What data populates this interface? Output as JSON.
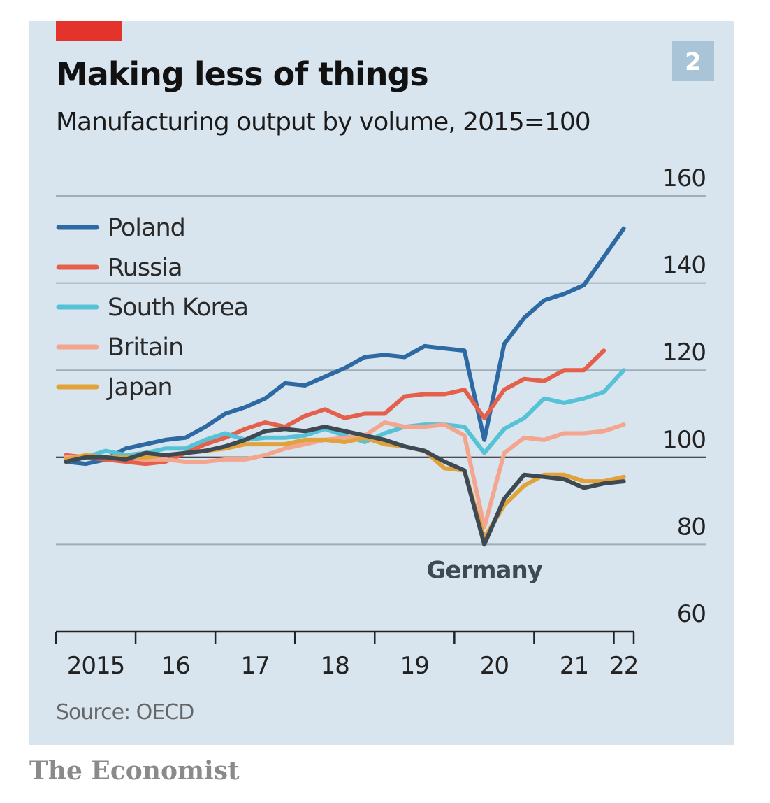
{
  "chart_data": {
    "type": "line",
    "chart_number": "2",
    "title": "Making less of things",
    "subtitle": "Manufacturing output by volume, 2015=100",
    "source": "Source: OECD",
    "publisher": "The Economist",
    "x": [
      2015.125,
      2015.375,
      2015.625,
      2015.875,
      2016.125,
      2016.375,
      2016.625,
      2016.875,
      2017.125,
      2017.375,
      2017.625,
      2017.875,
      2018.125,
      2018.375,
      2018.625,
      2018.875,
      2019.125,
      2019.375,
      2019.625,
      2019.875,
      2020.125,
      2020.375,
      2020.625,
      2020.875,
      2021.125,
      2021.375,
      2021.625,
      2021.875,
      2022.125
    ],
    "xlim": [
      2015,
      2022.25
    ],
    "xticks": [
      {
        "value": 2015,
        "label": "2015"
      },
      {
        "value": 2016,
        "label": "16"
      },
      {
        "value": 2017,
        "label": "17"
      },
      {
        "value": 2018,
        "label": "18"
      },
      {
        "value": 2019,
        "label": "19"
      },
      {
        "value": 2020,
        "label": "20"
      },
      {
        "value": 2021,
        "label": "21"
      },
      {
        "value": 2022,
        "label": "22"
      }
    ],
    "ylim": [
      60,
      160
    ],
    "yticks": [
      60,
      80,
      100,
      120,
      140,
      160
    ],
    "baseline": 100,
    "grid": true,
    "legend": "top-left",
    "series": [
      {
        "name": "Poland",
        "color": "#2d6aa3",
        "values": [
          99,
          98.5,
          99.5,
          102,
          103,
          104,
          104.5,
          107,
          110,
          111.5,
          113.5,
          117,
          116.5,
          118.5,
          120.5,
          123,
          123.5,
          123,
          125.5,
          125,
          124.5,
          104,
          126,
          132,
          136,
          137.5,
          139.5,
          146,
          152.5
        ]
      },
      {
        "name": "Russia",
        "color": "#e5604a",
        "values": [
          100.5,
          100,
          99.5,
          99,
          98.5,
          99,
          101,
          103,
          104.5,
          106.5,
          108,
          107,
          109.5,
          111,
          109,
          110,
          110,
          114,
          114.5,
          114.5,
          115.5,
          109,
          115.5,
          118,
          117.5,
          120,
          120,
          124.5,
          null
        ]
      },
      {
        "name": "South Korea",
        "color": "#56c2d6",
        "values": [
          99,
          100,
          101.5,
          100.5,
          101,
          102,
          102,
          104,
          105.5,
          104,
          104.5,
          104.5,
          105,
          106.5,
          105,
          103.5,
          105.5,
          107,
          107.5,
          107.5,
          107,
          101,
          106.5,
          109,
          113.5,
          112.5,
          113.5,
          115,
          120
        ]
      },
      {
        "name": "Britain",
        "color": "#f3a58e",
        "values": [
          100,
          100,
          100,
          100,
          99.5,
          99.5,
          99,
          99,
          99.5,
          99.5,
          100.5,
          102,
          103,
          104,
          104.5,
          105,
          108,
          107,
          107,
          107.5,
          105,
          84,
          101,
          104.5,
          104,
          105.5,
          105.5,
          106,
          107.5
        ]
      },
      {
        "name": "Japan",
        "color": "#e2a23a",
        "values": [
          99.5,
          100.5,
          100,
          100,
          100,
          100.5,
          101,
          101.5,
          102,
          103,
          103,
          103,
          104,
          104,
          103.5,
          104.5,
          103,
          102.5,
          101.5,
          97.5,
          97,
          81.5,
          89,
          93.5,
          96,
          96,
          94.5,
          94.5,
          95.5
        ]
      },
      {
        "name": "Germany",
        "color": "#3e4a53",
        "direct_label": true,
        "values": [
          99,
          100,
          100,
          99.5,
          101,
          100.5,
          101,
          101.5,
          102.5,
          104,
          106,
          106.5,
          106,
          107,
          106,
          105,
          104,
          102.5,
          101.5,
          99,
          97,
          80,
          90.5,
          96,
          95.5,
          95,
          93,
          94,
          94.5
        ]
      }
    ]
  }
}
